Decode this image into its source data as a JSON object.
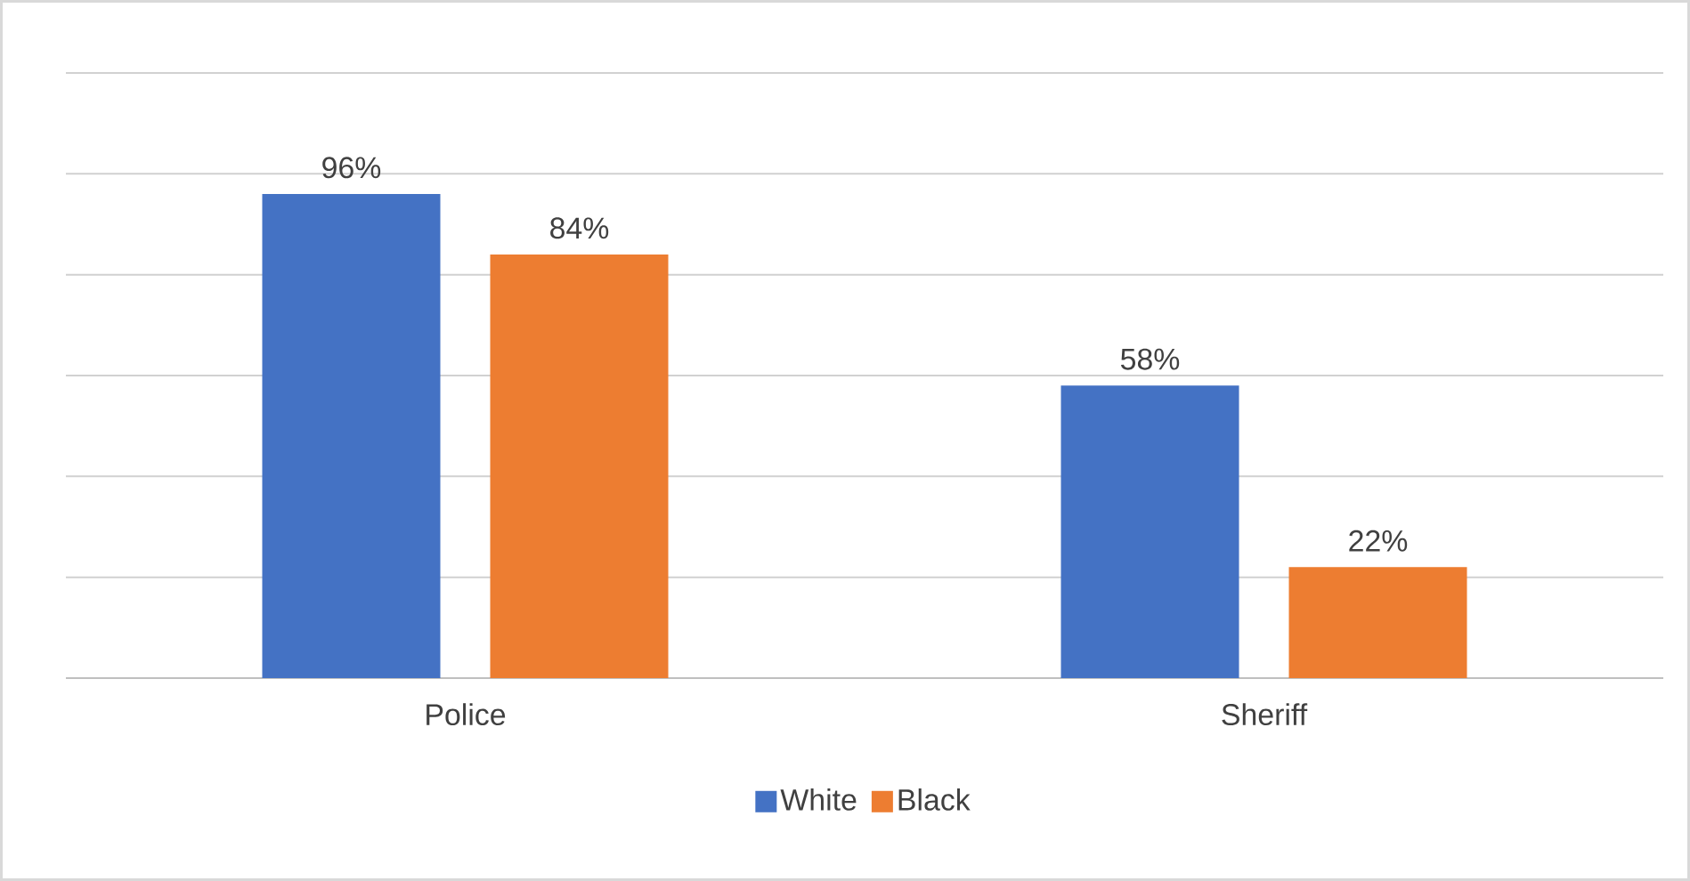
{
  "chart_data": {
    "type": "bar",
    "categories": [
      "Police",
      "Sheriff"
    ],
    "series": [
      {
        "name": "White",
        "color": "#4472c4",
        "values": [
          96,
          58
        ],
        "value_labels": [
          "96%",
          "58%"
        ]
      },
      {
        "name": "Black",
        "color": "#ed7d31",
        "values": [
          84,
          22
        ],
        "value_labels": [
          "84%",
          "22%"
        ]
      }
    ],
    "ylim": [
      0,
      120
    ],
    "yticks": [
      {
        "value": 0,
        "label": null
      },
      {
        "value": 20,
        "label": null
      },
      {
        "value": 40,
        "label": null
      },
      {
        "value": 60,
        "label": null
      },
      {
        "value": 80,
        "label": null
      },
      {
        "value": 100,
        "label": null
      },
      {
        "value": 120,
        "label": null
      }
    ],
    "grid": "y",
    "legend": "bottom",
    "tick_labels": "x"
  }
}
